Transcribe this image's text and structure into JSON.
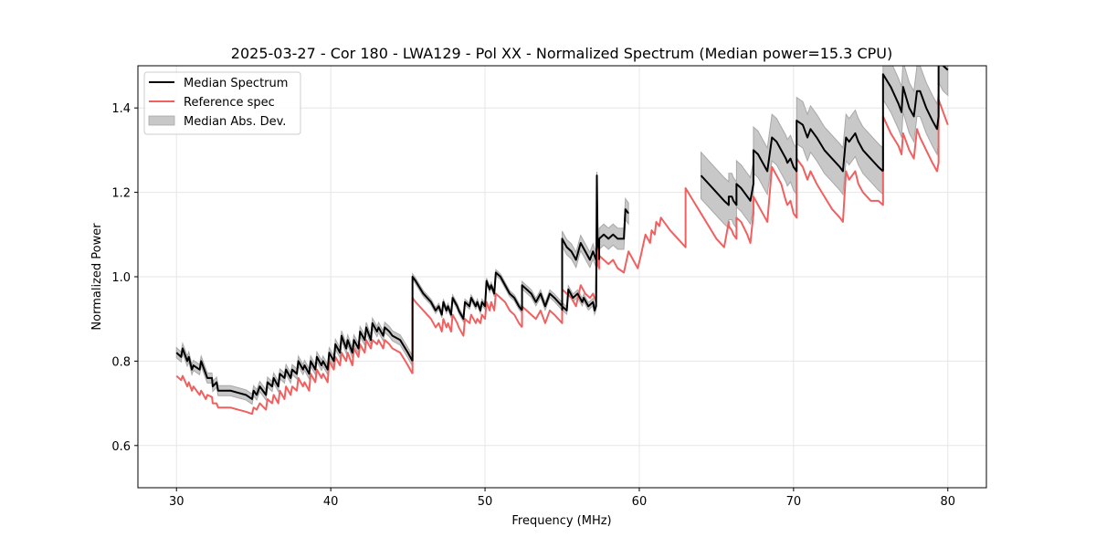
{
  "chart_data": {
    "type": "line",
    "title": "2025-03-27 - Cor 180 - LWA129 - Pol XX - Normalized Spectrum (Median power=15.3 CPU)",
    "xlabel": "Frequency (MHz)",
    "ylabel": "Normalized Power",
    "xlim": [
      27.5,
      82.5
    ],
    "ylim": [
      0.5,
      1.5
    ],
    "xticks": [
      30,
      40,
      50,
      60,
      70,
      80
    ],
    "xtick_labels": [
      "30",
      "40",
      "50",
      "60",
      "70",
      "80"
    ],
    "yticks": [
      0.6,
      0.8,
      1.0,
      1.2,
      1.4
    ],
    "ytick_labels": [
      "0.6",
      "0.8",
      "1.0",
      "1.2",
      "1.4"
    ],
    "grid": true,
    "legend": {
      "position": "top-left",
      "entries": [
        {
          "label": "Median Spectrum",
          "kind": "line",
          "color": "#000000"
        },
        {
          "label": "Reference spec",
          "kind": "line",
          "color": "#ee5555"
        },
        {
          "label": "Median Abs. Dev.",
          "kind": "fill",
          "color": "#c8c8c8"
        }
      ]
    },
    "colors": {
      "median": "#000000",
      "reference": "#f06060",
      "mad_fill": "#c8c8c8",
      "mad_edge": "#a8a8a8",
      "grid": "#e6e6e6"
    },
    "series": [
      {
        "name": "Median Spectrum",
        "segments": [
          {
            "x": [
              30.0,
              30.3,
              30.4,
              30.7,
              30.8,
              31.0,
              31.1,
              31.5,
              31.6,
              31.9,
              32.0,
              32.3,
              32.35,
              32.6,
              32.7,
              33.0,
              33.5,
              34.0,
              34.5,
              34.9,
              35.0,
              35.2,
              35.4,
              35.8,
              35.9,
              36.2,
              36.3,
              36.6,
              36.7,
              37.0,
              37.1,
              37.4,
              37.5,
              37.8,
              37.9,
              38.2,
              38.3,
              38.6,
              38.7,
              39.0,
              39.1,
              39.4,
              39.5,
              39.8,
              39.9,
              40.2,
              40.3,
              40.6,
              40.7,
              41.0,
              41.1,
              41.4,
              41.5,
              41.8,
              41.9,
              42.2,
              42.3,
              42.6,
              42.7,
              43.0,
              43.1,
              43.4,
              43.5,
              43.8,
              44.0,
              44.5,
              45.0,
              45.3
            ],
            "y": [
              0.82,
              0.81,
              0.83,
              0.8,
              0.81,
              0.78,
              0.79,
              0.78,
              0.8,
              0.77,
              0.76,
              0.76,
              0.74,
              0.75,
              0.73,
              0.73,
              0.73,
              0.725,
              0.72,
              0.71,
              0.73,
              0.72,
              0.74,
              0.72,
              0.75,
              0.74,
              0.76,
              0.74,
              0.77,
              0.76,
              0.78,
              0.76,
              0.78,
              0.77,
              0.8,
              0.78,
              0.79,
              0.77,
              0.8,
              0.78,
              0.81,
              0.79,
              0.8,
              0.78,
              0.82,
              0.8,
              0.84,
              0.82,
              0.86,
              0.83,
              0.85,
              0.82,
              0.85,
              0.83,
              0.87,
              0.85,
              0.88,
              0.85,
              0.89,
              0.87,
              0.88,
              0.86,
              0.88,
              0.87,
              0.86,
              0.85,
              0.82,
              0.8
            ]
          },
          {
            "x": [
              45.3,
              45.3,
              45.5,
              46.0,
              46.5,
              46.8,
              47.0,
              47.2,
              47.3,
              47.5,
              47.6,
              47.8,
              47.9,
              48.2,
              48.3,
              48.6,
              48.7,
              49.0,
              49.1,
              49.4,
              49.5,
              49.7,
              49.8,
              50.0,
              50.1,
              50.3,
              50.4,
              50.6,
              50.7,
              51.0,
              51.3,
              51.6,
              51.9,
              52.2,
              52.4
            ],
            "y": [
              0.8,
              1.0,
              0.99,
              0.96,
              0.94,
              0.92,
              0.93,
              0.91,
              0.94,
              0.92,
              0.93,
              0.91,
              0.95,
              0.93,
              0.92,
              0.9,
              0.94,
              0.93,
              0.95,
              0.93,
              0.94,
              0.92,
              0.94,
              0.93,
              0.99,
              0.97,
              0.98,
              0.96,
              1.01,
              1.0,
              0.98,
              0.96,
              0.95,
              0.93,
              0.92
            ]
          },
          {
            "x": [
              52.4,
              52.4,
              52.7,
              53.0,
              53.3,
              53.6,
              53.9,
              54.2,
              54.5,
              55.0,
              55.3,
              55.4,
              55.7,
              56.0,
              56.3,
              56.4,
              56.7,
              57.0,
              57.1,
              57.2,
              57.25,
              57.3,
              57.4
            ],
            "y": [
              0.92,
              0.98,
              0.97,
              0.96,
              0.94,
              0.96,
              0.93,
              0.96,
              0.95,
              0.93,
              0.92,
              0.97,
              0.95,
              0.96,
              0.94,
              0.95,
              0.93,
              0.94,
              0.92,
              0.93,
              1.24,
              1.08,
              1.06
            ]
          },
          {
            "x": [
              55.0,
              55.0,
              55.3,
              55.6,
              55.9,
              56.2,
              56.5,
              56.8,
              57.0,
              57.2
            ],
            "y": [
              0.92,
              1.09,
              1.07,
              1.06,
              1.04,
              1.08,
              1.06,
              1.04,
              1.06,
              1.04
            ]
          },
          {
            "x": [
              57.4,
              57.4,
              57.7,
              58.0,
              58.3,
              58.6,
              59.0,
              59.1,
              59.3
            ],
            "y": [
              1.04,
              1.09,
              1.1,
              1.09,
              1.1,
              1.09,
              1.09,
              1.16,
              1.15
            ]
          },
          {
            "x": [
              64.0,
              64.5,
              65.0,
              65.5,
              65.8,
              65.8,
              66.0,
              66.1,
              66.3,
              66.3,
              66.6,
              67.0,
              67.2,
              67.4,
              67.4,
              67.7,
              68.0,
              68.3,
              68.6,
              68.9,
              69.2,
              69.5,
              69.6,
              69.8,
              70.0,
              70.2,
              70.2,
              70.6,
              70.8,
              70.9,
              71.1,
              71.5,
              72.0,
              72.5,
              73.0,
              73.2,
              73.4,
              73.6,
              74.0,
              74.2,
              74.5,
              75.0,
              75.5,
              75.8
            ],
            "y": [
              1.24,
              1.22,
              1.2,
              1.18,
              1.17,
              1.19,
              1.19,
              1.18,
              1.17,
              1.22,
              1.21,
              1.19,
              1.18,
              1.22,
              1.3,
              1.29,
              1.27,
              1.25,
              1.33,
              1.32,
              1.3,
              1.28,
              1.27,
              1.28,
              1.26,
              1.25,
              1.37,
              1.36,
              1.34,
              1.33,
              1.35,
              1.33,
              1.3,
              1.28,
              1.26,
              1.25,
              1.33,
              1.32,
              1.34,
              1.32,
              1.3,
              1.28,
              1.26,
              1.25
            ]
          },
          {
            "x": [
              75.8,
              75.8,
              76.3,
              76.8,
              77.0,
              77.1,
              77.5,
              77.8,
              78.0,
              78.2,
              78.6,
              79.0,
              79.3,
              79.4,
              79.4,
              79.7,
              80.0
            ],
            "y": [
              1.25,
              1.48,
              1.45,
              1.41,
              1.39,
              1.45,
              1.4,
              1.38,
              1.44,
              1.44,
              1.4,
              1.37,
              1.35,
              1.38,
              1.52,
              1.5,
              1.49
            ]
          }
        ]
      },
      {
        "name": "Reference spec",
        "segments": [
          {
            "x": [
              30.0,
              30.3,
              30.4,
              30.7,
              30.8,
              31.0,
              31.1,
              31.5,
              31.6,
              31.9,
              32.0,
              32.3,
              32.35,
              32.6,
              32.7,
              33.0,
              33.5,
              34.0,
              34.5,
              34.9,
              35.0,
              35.2,
              35.4,
              35.8,
              35.9,
              36.2,
              36.3,
              36.6,
              36.7,
              37.0,
              37.1,
              37.4,
              37.5,
              37.8,
              37.9,
              38.2,
              38.3,
              38.6,
              38.7,
              39.0,
              39.1,
              39.4,
              39.5,
              39.8,
              39.9,
              40.2,
              40.3,
              40.6,
              40.7,
              41.0,
              41.1,
              41.4,
              41.5,
              41.8,
              41.9,
              42.2,
              42.3,
              42.6,
              42.7,
              43.0,
              43.1,
              43.4,
              43.5,
              43.8,
              44.0,
              44.5,
              45.0,
              45.3
            ],
            "y": [
              0.765,
              0.755,
              0.765,
              0.74,
              0.75,
              0.73,
              0.74,
              0.72,
              0.73,
              0.71,
              0.72,
              0.715,
              0.7,
              0.7,
              0.69,
              0.69,
              0.69,
              0.685,
              0.68,
              0.675,
              0.69,
              0.685,
              0.7,
              0.685,
              0.71,
              0.7,
              0.72,
              0.7,
              0.73,
              0.71,
              0.74,
              0.72,
              0.74,
              0.73,
              0.76,
              0.74,
              0.75,
              0.73,
              0.77,
              0.75,
              0.78,
              0.76,
              0.77,
              0.75,
              0.8,
              0.78,
              0.81,
              0.79,
              0.82,
              0.8,
              0.82,
              0.79,
              0.83,
              0.81,
              0.84,
              0.82,
              0.85,
              0.83,
              0.85,
              0.84,
              0.85,
              0.83,
              0.85,
              0.84,
              0.83,
              0.82,
              0.79,
              0.77
            ]
          },
          {
            "x": [
              45.3,
              45.3,
              45.5,
              46.0,
              46.5,
              46.8,
              47.0,
              47.2,
              47.3,
              47.5,
              47.6,
              47.8,
              47.9,
              48.2,
              48.3,
              48.6,
              48.7,
              49.0,
              49.1,
              49.4,
              49.5,
              49.7,
              49.8,
              50.0,
              50.1,
              50.3,
              50.4,
              50.6,
              50.7,
              51.0,
              51.3,
              51.6,
              51.9,
              52.2,
              52.4
            ],
            "y": [
              0.77,
              0.95,
              0.94,
              0.92,
              0.9,
              0.88,
              0.89,
              0.87,
              0.9,
              0.88,
              0.89,
              0.87,
              0.91,
              0.89,
              0.88,
              0.86,
              0.9,
              0.89,
              0.91,
              0.89,
              0.9,
              0.89,
              0.91,
              0.9,
              0.94,
              0.92,
              0.94,
              0.92,
              0.96,
              0.95,
              0.94,
              0.92,
              0.91,
              0.89,
              0.88
            ]
          },
          {
            "x": [
              52.4,
              52.4,
              52.7,
              53.0,
              53.3,
              53.6,
              53.9,
              54.2,
              54.5,
              55.0,
              55.0,
              55.3,
              55.6,
              55.9,
              56.2,
              56.5,
              56.8,
              57.0,
              57.2,
              57.25,
              57.3,
              57.4,
              57.4,
              57.7,
              58.0,
              58.3,
              58.6,
              59.0,
              59.3,
              59.6,
              59.9,
              60.1,
              60.4,
              60.7,
              60.8,
              61.0,
              61.1,
              61.3,
              61.4,
              62.0,
              62.5,
              63.0,
              63.0,
              63.5,
              64.0,
              64.5,
              65.0,
              65.5,
              65.8,
              65.8,
              66.0,
              66.1,
              66.3,
              66.3,
              66.6,
              67.0,
              67.2,
              67.4,
              67.4,
              67.7,
              68.0,
              68.3,
              68.6,
              68.9,
              69.2,
              69.5,
              69.6,
              69.8,
              70.0,
              70.2,
              70.2,
              70.6,
              70.8,
              70.9,
              71.1,
              71.5,
              72.0,
              72.5,
              73.0,
              73.2,
              73.4,
              73.6,
              74.0,
              74.2,
              74.5,
              75.0,
              75.5,
              75.8,
              75.8,
              76.3,
              76.8,
              77.0,
              77.1,
              77.5,
              77.8,
              78.0,
              78.2,
              78.6,
              79.0,
              79.3,
              79.4,
              79.4,
              79.7,
              80.0
            ],
            "y": [
              0.88,
              0.93,
              0.92,
              0.91,
              0.9,
              0.92,
              0.89,
              0.92,
              0.91,
              0.89,
              0.97,
              0.96,
              0.95,
              0.93,
              0.98,
              0.96,
              0.95,
              0.96,
              0.94,
              1.12,
              1.03,
              1.02,
              1.05,
              1.04,
              1.03,
              1.04,
              1.02,
              1.01,
              1.06,
              1.04,
              1.02,
              1.05,
              1.1,
              1.08,
              1.11,
              1.1,
              1.13,
              1.12,
              1.14,
              1.11,
              1.09,
              1.07,
              1.21,
              1.18,
              1.15,
              1.12,
              1.09,
              1.07,
              1.13,
              1.12,
              1.11,
              1.1,
              1.09,
              1.14,
              1.13,
              1.1,
              1.08,
              1.15,
              1.19,
              1.17,
              1.15,
              1.13,
              1.26,
              1.24,
              1.22,
              1.18,
              1.17,
              1.18,
              1.15,
              1.14,
              1.28,
              1.26,
              1.24,
              1.23,
              1.25,
              1.22,
              1.19,
              1.16,
              1.14,
              1.13,
              1.25,
              1.23,
              1.25,
              1.22,
              1.2,
              1.18,
              1.18,
              1.17,
              1.38,
              1.34,
              1.31,
              1.29,
              1.34,
              1.3,
              1.28,
              1.35,
              1.33,
              1.3,
              1.27,
              1.25,
              1.27,
              1.42,
              1.39,
              1.36
            ]
          }
        ]
      },
      {
        "name": "Median Abs. Dev.",
        "description": "shaded band = Median Spectrum ± half_width",
        "half_width_by_segment": [
          0.012,
          0.007,
          0.009,
          0.018,
          0.025,
          0.055,
          0.06
        ]
      }
    ]
  }
}
